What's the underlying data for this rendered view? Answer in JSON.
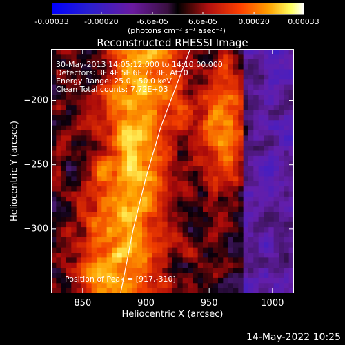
{
  "chart_data": {
    "type": "heatmap",
    "title": "Reconstructed RHESSI Image",
    "colorbar": {
      "colormap": "rainbow-3-blue-purple-red-yellow-white",
      "range": [
        -0.00033,
        0.00033
      ],
      "tick_labels": [
        "-0.00033",
        "-0.00020",
        "-6.6e-05",
        "6.6e-05",
        "0.00020",
        "0.00033"
      ],
      "tick_values": [
        -0.00033,
        -0.0002,
        -6.6e-05,
        6.6e-05,
        0.0002,
        0.00033
      ],
      "units_label": "(photons cm⁻² s⁻¹ asec⁻²)"
    },
    "xlabel": "Heliocentric X (arcsec)",
    "ylabel": "Heliocentric Y (arcsec)",
    "xlim": [
      825,
      1017
    ],
    "ylim": [
      -350,
      -160
    ],
    "x_ticks": [
      850,
      900,
      950,
      1000
    ],
    "y_ticks": [
      -200,
      -250,
      -300
    ],
    "annotations": [
      "30-May-2013 14:05:12.000 to 14:10:00.000",
      "Detectors: 3F 4F 5F 6F 7F 8F, Att 0",
      "Energy Range: 25.0 - 50.0 keV",
      "Clean     Total counts: 7.72E+03"
    ],
    "position_label": "Position of Peak = [917,-310]",
    "peak_position": [
      917,
      -310
    ],
    "limb_curve": [
      [
        880,
        -350
      ],
      [
        890,
        -300
      ],
      [
        900,
        -260
      ],
      [
        912,
        -220
      ],
      [
        935,
        -160
      ]
    ]
  },
  "footer": {
    "timestamp": "14-May-2022 10:25"
  }
}
